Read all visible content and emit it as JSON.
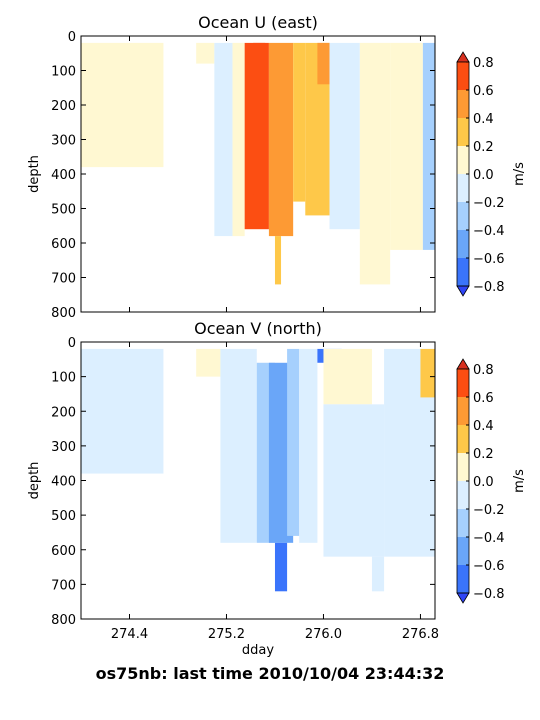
{
  "footer_text": "os75nb: last time 2010/10/04 23:44:32",
  "colorbar": {
    "label": "m/s",
    "ticks": [
      "0.8",
      "0.6",
      "0.4",
      "0.2",
      "0.0",
      "−0.2",
      "−0.4",
      "−0.6",
      "−0.8"
    ],
    "colors": [
      "#d7301f",
      "#fc4e12",
      "#fd9a34",
      "#fec849",
      "#fff8d2",
      "#dcefff",
      "#a6d0fd",
      "#6aa6f8",
      "#3a74fb",
      "#2f45f6"
    ]
  },
  "chart_data": [
    {
      "type": "heatmap",
      "title": "Ocean U (east)",
      "xlabel": "",
      "ylabel": "depth",
      "xlim": [
        274.0,
        276.92
      ],
      "ylim": [
        800,
        0
      ],
      "xticks": [
        274.4,
        275.2,
        276.0,
        276.8
      ],
      "xtick_labels": [
        "",
        "",
        "",
        ""
      ],
      "yticks": [
        "0",
        "100",
        "200",
        "300",
        "400",
        "500",
        "600",
        "700",
        "800"
      ],
      "levels": [
        -0.8,
        -0.6,
        -0.4,
        -0.2,
        0.0,
        0.2,
        0.4,
        0.6,
        0.8
      ],
      "colorbar_label": "m/s",
      "regions": [
        {
          "x": [
            274.0,
            274.68
          ],
          "y": [
            20,
            380
          ],
          "value": 0.05
        },
        {
          "x": [
            274.95,
            275.1
          ],
          "y": [
            20,
            80
          ],
          "value": 0.1
        },
        {
          "x": [
            275.1,
            275.25
          ],
          "y": [
            20,
            580
          ],
          "value": -0.15
        },
        {
          "x": [
            275.25,
            275.35
          ],
          "y": [
            20,
            580
          ],
          "value": 0.1
        },
        {
          "x": [
            275.35,
            275.55
          ],
          "y": [
            20,
            560
          ],
          "value": 0.6
        },
        {
          "x": [
            275.42,
            275.52
          ],
          "y": [
            20,
            460
          ],
          "value": 0.7
        },
        {
          "x": [
            275.55,
            275.75
          ],
          "y": [
            20,
            580
          ],
          "value": 0.5
        },
        {
          "x": [
            275.6,
            275.65
          ],
          "y": [
            580,
            720
          ],
          "value": 0.3
        },
        {
          "x": [
            275.75,
            275.85
          ],
          "y": [
            20,
            480
          ],
          "value": 0.2
        },
        {
          "x": [
            275.85,
            276.05
          ],
          "y": [
            20,
            520
          ],
          "value": 0.3
        },
        {
          "x": [
            275.95,
            276.05
          ],
          "y": [
            20,
            140
          ],
          "value": 0.5
        },
        {
          "x": [
            276.05,
            276.3
          ],
          "y": [
            20,
            560
          ],
          "value": -0.1
        },
        {
          "x": [
            276.3,
            276.55
          ],
          "y": [
            20,
            720
          ],
          "value": 0.05
        },
        {
          "x": [
            276.55,
            276.82
          ],
          "y": [
            20,
            620
          ],
          "value": 0.1
        },
        {
          "x": [
            276.82,
            276.92
          ],
          "y": [
            20,
            620
          ],
          "value": -0.3
        }
      ]
    },
    {
      "type": "heatmap",
      "title": "Ocean V (north)",
      "xlabel": "dday",
      "ylabel": "depth",
      "xlim": [
        274.0,
        276.92
      ],
      "ylim": [
        800,
        0
      ],
      "xticks": [
        274.4,
        275.2,
        276.0,
        276.8
      ],
      "xtick_labels": [
        "274.4",
        "275.2",
        "276.0",
        "276.8"
      ],
      "yticks": [
        "0",
        "100",
        "200",
        "300",
        "400",
        "500",
        "600",
        "700",
        "800"
      ],
      "levels": [
        -0.8,
        -0.6,
        -0.4,
        -0.2,
        0.0,
        0.2,
        0.4,
        0.6,
        0.8
      ],
      "colorbar_label": "m/s",
      "regions": [
        {
          "x": [
            274.0,
            274.68
          ],
          "y": [
            20,
            380
          ],
          "value": -0.05
        },
        {
          "x": [
            274.95,
            275.15
          ],
          "y": [
            20,
            100
          ],
          "value": 0.05
        },
        {
          "x": [
            275.15,
            275.45
          ],
          "y": [
            20,
            580
          ],
          "value": -0.1
        },
        {
          "x": [
            275.45,
            275.6
          ],
          "y": [
            60,
            580
          ],
          "value": -0.3
        },
        {
          "x": [
            275.55,
            275.75
          ],
          "y": [
            60,
            580
          ],
          "value": -0.55
        },
        {
          "x": [
            275.6,
            275.7
          ],
          "y": [
            580,
            720
          ],
          "value": -0.7
        },
        {
          "x": [
            275.7,
            275.8
          ],
          "y": [
            20,
            560
          ],
          "value": -0.35
        },
        {
          "x": [
            275.8,
            275.95
          ],
          "y": [
            20,
            580
          ],
          "value": -0.15
        },
        {
          "x": [
            275.95,
            276.15
          ],
          "y": [
            20,
            60
          ],
          "value": -0.7
        },
        {
          "x": [
            276.0,
            276.4
          ],
          "y": [
            20,
            180
          ],
          "value": 0.1
        },
        {
          "x": [
            276.0,
            276.5
          ],
          "y": [
            180,
            620
          ],
          "value": -0.1
        },
        {
          "x": [
            276.5,
            276.92
          ],
          "y": [
            20,
            620
          ],
          "value": -0.15
        },
        {
          "x": [
            276.4,
            276.5
          ],
          "y": [
            620,
            720
          ],
          "value": -0.1
        },
        {
          "x": [
            276.8,
            276.92
          ],
          "y": [
            20,
            160
          ],
          "value": 0.25
        }
      ]
    }
  ]
}
